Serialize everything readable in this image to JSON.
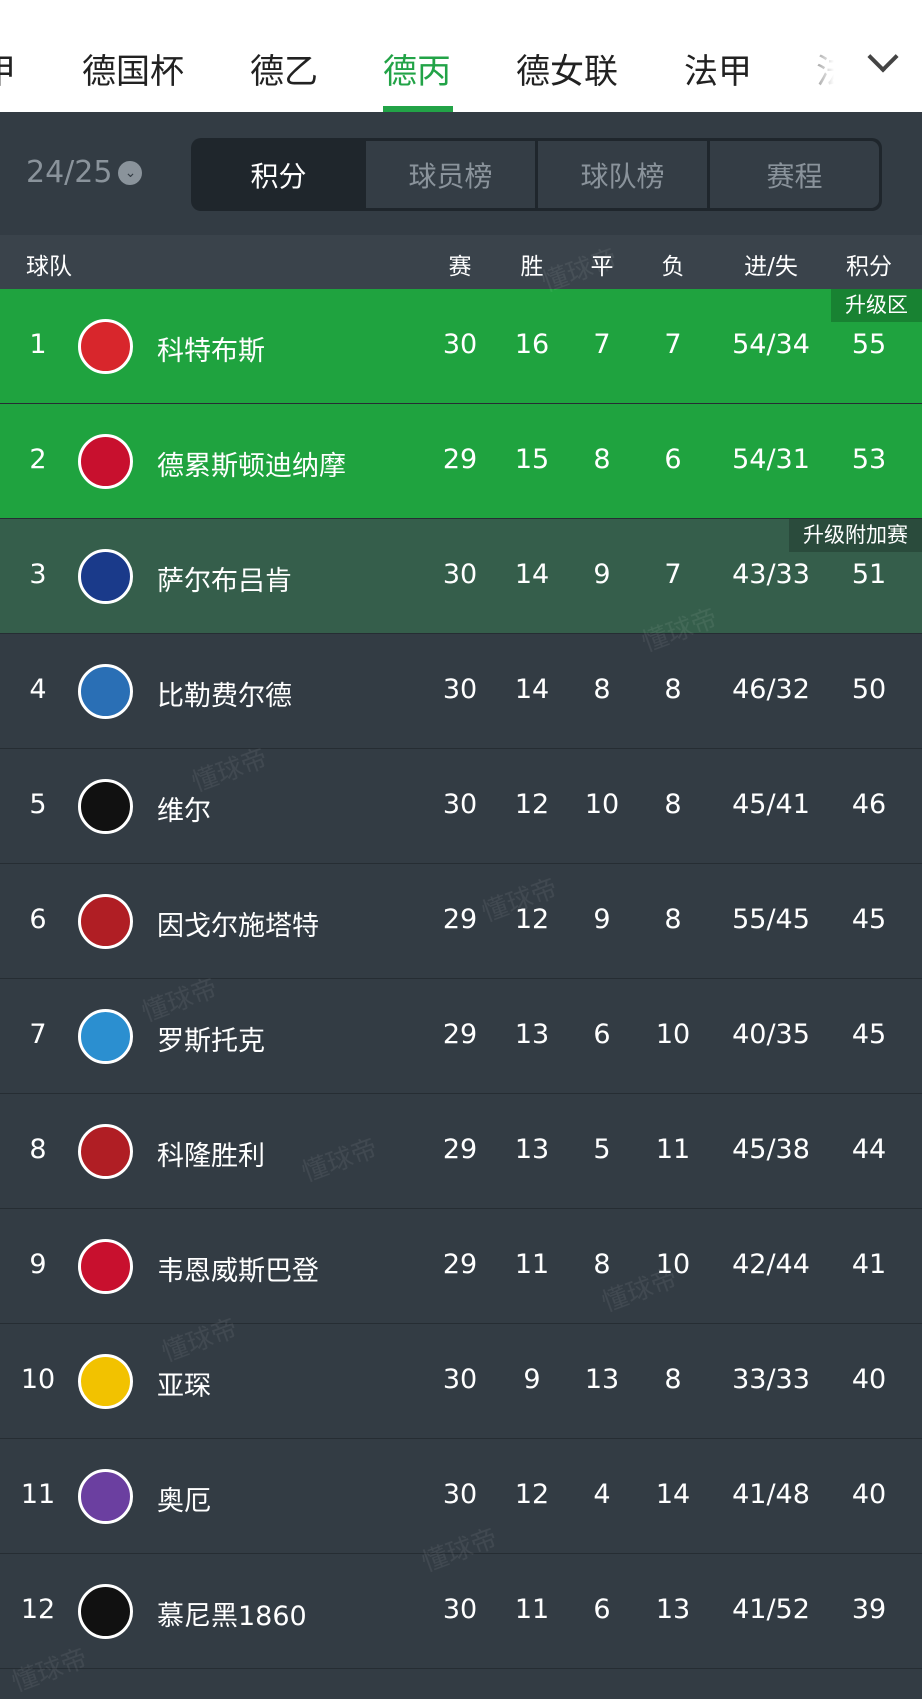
{
  "league_tabs": [
    {
      "label": "甲"
    },
    {
      "label": "德国杯"
    },
    {
      "label": "德乙"
    },
    {
      "label": "德丙",
      "active": true
    },
    {
      "label": "德女联"
    },
    {
      "label": "法甲"
    },
    {
      "label": "法"
    }
  ],
  "season": "24/25",
  "segments": [
    "积分",
    "球员榜",
    "球队榜",
    "赛程"
  ],
  "headers": {
    "team": "球队",
    "played": "赛",
    "won": "胜",
    "drawn": "平",
    "lost": "负",
    "goals": "进/失",
    "points": "积分"
  },
  "colors": {
    "accent": "#22a347",
    "promotion": "#1fa33f",
    "playoff": "#355e4b",
    "background": "#333c44"
  },
  "watermark": "懂球帝",
  "rows": [
    {
      "rank": "1",
      "team": "科特布斯",
      "p": "30",
      "w": "16",
      "d": "7",
      "l": "7",
      "g": "54/34",
      "pts": "55",
      "badge": "升级区",
      "zone": "promotion",
      "logo": "#d8262c"
    },
    {
      "rank": "2",
      "team": "德累斯顿迪纳摩",
      "p": "29",
      "w": "15",
      "d": "8",
      "l": "6",
      "g": "54/31",
      "pts": "53",
      "zone": "promotion",
      "logo": "#c8102e"
    },
    {
      "rank": "3",
      "team": "萨尔布吕肯",
      "p": "30",
      "w": "14",
      "d": "9",
      "l": "7",
      "g": "43/33",
      "pts": "51",
      "badge": "升级附加赛",
      "zone": "playoff",
      "logo": "#1a3a8a"
    },
    {
      "rank": "4",
      "team": "比勒费尔德",
      "p": "30",
      "w": "14",
      "d": "8",
      "l": "8",
      "g": "46/32",
      "pts": "50",
      "logo": "#2a6fb5"
    },
    {
      "rank": "5",
      "team": "维尔",
      "p": "30",
      "w": "12",
      "d": "10",
      "l": "8",
      "g": "45/41",
      "pts": "46",
      "logo": "#111111"
    },
    {
      "rank": "6",
      "team": "因戈尔施塔特",
      "p": "29",
      "w": "12",
      "d": "9",
      "l": "8",
      "g": "55/45",
      "pts": "45",
      "logo": "#b01e24"
    },
    {
      "rank": "7",
      "team": "罗斯托克",
      "p": "29",
      "w": "13",
      "d": "6",
      "l": "10",
      "g": "40/35",
      "pts": "45",
      "logo": "#2b8fd0"
    },
    {
      "rank": "8",
      "team": "科隆胜利",
      "p": "29",
      "w": "13",
      "d": "5",
      "l": "11",
      "g": "45/38",
      "pts": "44",
      "logo": "#b01e24"
    },
    {
      "rank": "9",
      "team": "韦恩威斯巴登",
      "p": "29",
      "w": "11",
      "d": "8",
      "l": "10",
      "g": "42/44",
      "pts": "41",
      "logo": "#c8102e"
    },
    {
      "rank": "10",
      "team": "亚琛",
      "p": "30",
      "w": "9",
      "d": "13",
      "l": "8",
      "g": "33/33",
      "pts": "40",
      "logo": "#f2c200"
    },
    {
      "rank": "11",
      "team": "奥厄",
      "p": "30",
      "w": "12",
      "d": "4",
      "l": "14",
      "g": "41/48",
      "pts": "40",
      "logo": "#6b3fa0"
    },
    {
      "rank": "12",
      "team": "慕尼黑1860",
      "p": "30",
      "w": "11",
      "d": "6",
      "l": "13",
      "g": "41/52",
      "pts": "39",
      "logo": "#111111"
    }
  ]
}
